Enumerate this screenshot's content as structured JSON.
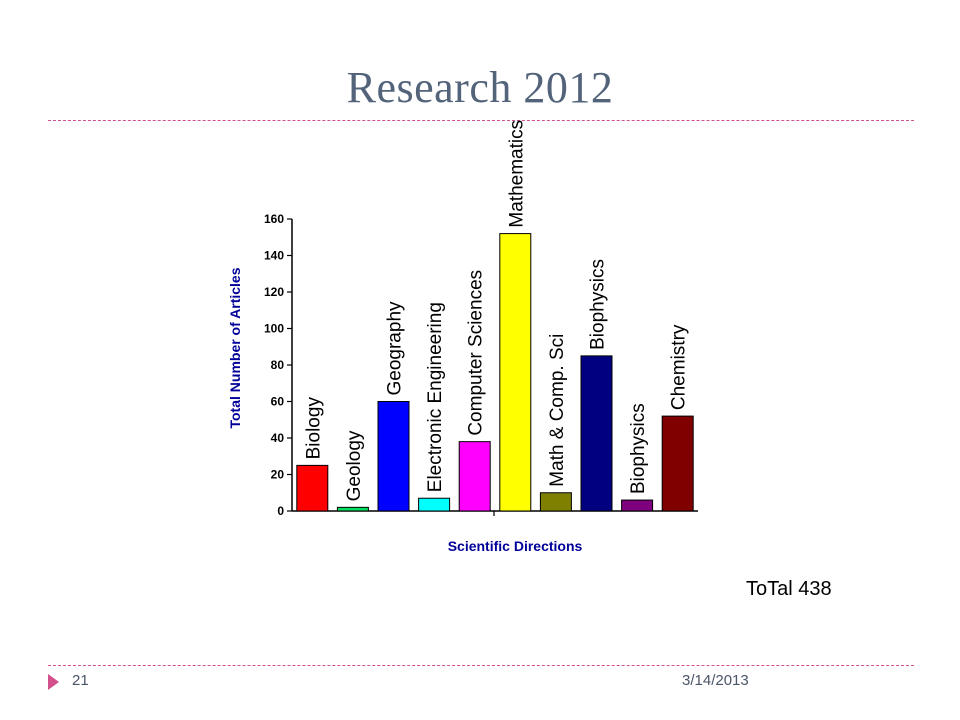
{
  "slide": {
    "title": "Research 2012",
    "total_label": "ToTal 438",
    "page_number": "21",
    "date": "3/14/2013"
  },
  "chart_data": {
    "type": "bar",
    "title": "",
    "xlabel": "Scientific Directions",
    "ylabel": "Total Number of Articles",
    "ylim": [
      0,
      160
    ],
    "yticks": [
      0,
      20,
      40,
      60,
      80,
      100,
      120,
      140,
      160
    ],
    "grid": false,
    "categories": [
      "Biology",
      "Geology",
      "Geography",
      "Electronic Engineering",
      "Computer Sciences",
      "Mathematics",
      "Math & Comp. Sci",
      "Biophysics",
      "Biophysics",
      "Chemistry"
    ],
    "values": [
      25,
      2,
      60,
      7,
      38,
      152,
      10,
      85,
      6,
      52
    ],
    "colors": [
      "#ff0000",
      "#00e060",
      "#0000ff",
      "#00ffff",
      "#ff00ff",
      "#ffff00",
      "#7f7f00",
      "#000080",
      "#7f007f",
      "#800000"
    ],
    "axis_label_color": "#000099"
  }
}
